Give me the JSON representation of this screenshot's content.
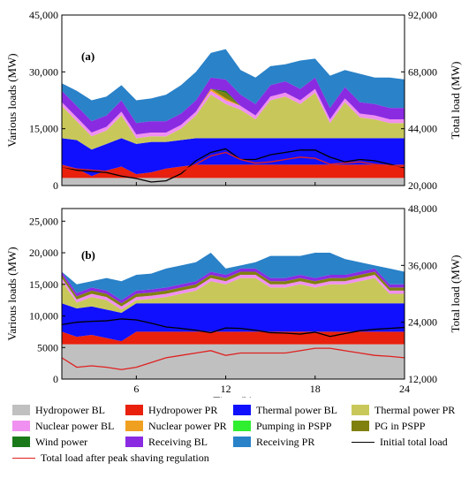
{
  "chart_data": [
    {
      "panel": "(a)",
      "type": "area",
      "stacked": true,
      "x": [
        1,
        2,
        3,
        4,
        5,
        6,
        7,
        8,
        9,
        10,
        11,
        12,
        13,
        14,
        15,
        16,
        17,
        18,
        19,
        20,
        21,
        22,
        23,
        24
      ],
      "xlim": [
        1,
        24
      ],
      "ylabel": "Various loads (MW)",
      "ylim": [
        0,
        45000
      ],
      "yticks": [
        "0",
        "15,000",
        "30,000",
        "45,000"
      ],
      "y2label": "Total load (MW)",
      "y2lim": [
        92000,
        20000
      ],
      "y2ticks": [
        "20,000",
        "44,000",
        "68,000",
        "92,000"
      ],
      "series": [
        {
          "name": "Hydropower BL",
          "values": [
            2000,
            2000,
            2000,
            2000,
            2000,
            2000,
            2000,
            2000,
            2000,
            2000,
            2000,
            2000,
            2000,
            2000,
            2000,
            2000,
            2000,
            2000,
            2000,
            2000,
            2000,
            2000,
            2000,
            2000
          ]
        },
        {
          "name": "Hydropower PR",
          "values": [
            3500,
            2500,
            500,
            2000,
            3000,
            1000,
            1500,
            2500,
            3000,
            3500,
            3500,
            3500,
            3500,
            3500,
            3500,
            3500,
            3500,
            3500,
            3500,
            3500,
            3500,
            3500,
            3500,
            3500
          ]
        },
        {
          "name": "Thermal power BL",
          "values": [
            7000,
            7500,
            7000,
            7000,
            7500,
            8000,
            8000,
            7000,
            7000,
            7000,
            7000,
            7000,
            7000,
            7000,
            7000,
            7000,
            7000,
            7000,
            7000,
            7000,
            7000,
            7000,
            7000,
            7000
          ]
        },
        {
          "name": "Thermal power PR",
          "values": [
            8500,
            5000,
            3500,
            3500,
            6000,
            1500,
            1500,
            1500,
            3000,
            6000,
            11500,
            9000,
            7500,
            5000,
            10000,
            11000,
            9000,
            12000,
            4000,
            9500,
            5500,
            5000,
            4000,
            4000
          ]
        },
        {
          "name": "Nuclear power BL",
          "values": [
            1000,
            1000,
            1000,
            1000,
            1000,
            1000,
            1000,
            1000,
            1000,
            1000,
            1000,
            1000,
            1000,
            1000,
            1000,
            1000,
            1000,
            1000,
            1000,
            1000,
            1000,
            1000,
            1000,
            1000
          ]
        },
        {
          "name": "Nuclear power PR",
          "values": [
            0,
            0,
            0,
            0,
            0,
            0,
            0,
            0,
            0,
            0,
            500,
            500,
            0,
            0,
            0,
            0,
            0,
            0,
            0,
            0,
            0,
            0,
            0,
            0
          ]
        },
        {
          "name": "Pumping in PSPP",
          "values": [
            0,
            0,
            0,
            0,
            0,
            0,
            0,
            0,
            0,
            0,
            0,
            0,
            0,
            0,
            0,
            0,
            0,
            0,
            0,
            0,
            0,
            0,
            0,
            0
          ]
        },
        {
          "name": "PG in PSPP",
          "values": [
            0,
            0,
            0,
            0,
            0,
            0,
            0,
            0,
            0,
            0,
            0,
            1500,
            0,
            0,
            0,
            0,
            0,
            0,
            0,
            0,
            0,
            0,
            0,
            0
          ]
        },
        {
          "name": "Wind power",
          "values": [
            0,
            0,
            0,
            0,
            0,
            0,
            0,
            0,
            0,
            0,
            0,
            500,
            0,
            0,
            0,
            0,
            0,
            0,
            0,
            0,
            0,
            0,
            0,
            0
          ]
        },
        {
          "name": "Receiving BL",
          "values": [
            3000,
            3000,
            3000,
            3000,
            3000,
            3000,
            3000,
            3000,
            3000,
            3000,
            3000,
            3000,
            3000,
            3000,
            3000,
            3000,
            3000,
            3000,
            3000,
            3000,
            3000,
            3000,
            3000,
            3000
          ]
        },
        {
          "name": "Receiving PR",
          "values": [
            2000,
            4000,
            5500,
            5000,
            4000,
            6000,
            6000,
            7000,
            7500,
            7500,
            6500,
            8000,
            6500,
            7000,
            5000,
            4500,
            7500,
            5000,
            8500,
            4500,
            7500,
            7000,
            8000,
            7500
          ]
        }
      ],
      "lines": [
        {
          "name": "Initial total load",
          "values": [
            28000,
            26500,
            26000,
            25500,
            24000,
            23000,
            21500,
            22000,
            25000,
            30500,
            34000,
            35500,
            31000,
            31000,
            33000,
            34000,
            35000,
            35000,
            32000,
            30000,
            31000,
            30500,
            29000,
            27500
          ]
        },
        {
          "name": "Total load after peak shaving regulation",
          "values": [
            28000,
            27000,
            26500,
            26000,
            25000,
            24000,
            24000,
            24000,
            26000,
            29000,
            32500,
            34000,
            31000,
            29500,
            30000,
            31000,
            32000,
            31500,
            29000,
            29500,
            30000,
            29000,
            28500,
            28000
          ]
        }
      ]
    },
    {
      "panel": "(b)",
      "type": "area",
      "stacked": true,
      "x": [
        1,
        2,
        3,
        4,
        5,
        6,
        7,
        8,
        9,
        10,
        11,
        12,
        13,
        14,
        15,
        16,
        17,
        18,
        19,
        20,
        21,
        22,
        23,
        24
      ],
      "xlim": [
        1,
        24
      ],
      "xlabel": "Time (h)",
      "xticks": [
        "6",
        "12",
        "18",
        "24"
      ],
      "ylabel": "Various loads (MW)",
      "ylim": [
        0,
        27000
      ],
      "yticks": [
        "0",
        "5000",
        "10,000",
        "15,000",
        "20,000",
        "25,000"
      ],
      "y2label": "Total load (MW)",
      "y2lim": [
        48000,
        12000
      ],
      "y2ticks": [
        "12,000",
        "24,000",
        "36,000",
        "48,000"
      ],
      "series": [
        {
          "name": "Hydropower BL",
          "values": [
            5500,
            5500,
            5500,
            5500,
            5500,
            5500,
            5500,
            5500,
            5500,
            5500,
            5500,
            5500,
            5500,
            5500,
            5500,
            5500,
            5500,
            5500,
            5500,
            5500,
            5500,
            5500,
            5500,
            5500
          ]
        },
        {
          "name": "Hydropower PR",
          "values": [
            2000,
            1200,
            1500,
            1000,
            500,
            2000,
            2000,
            2000,
            2000,
            2000,
            2000,
            2000,
            2000,
            2000,
            2000,
            2000,
            2000,
            2000,
            2000,
            2000,
            2000,
            2000,
            2000,
            2000
          ]
        },
        {
          "name": "Thermal power BL",
          "values": [
            4500,
            4500,
            4500,
            4500,
            4500,
            4500,
            4500,
            4500,
            4500,
            4500,
            4500,
            4500,
            4500,
            4500,
            4500,
            4500,
            4500,
            4500,
            4500,
            4500,
            4500,
            4500,
            4500,
            4500
          ]
        },
        {
          "name": "Thermal power PR",
          "values": [
            3500,
            900,
            1500,
            1500,
            500,
            500,
            700,
            1000,
            1500,
            2000,
            3500,
            3000,
            4000,
            4000,
            2500,
            2500,
            3000,
            2500,
            3000,
            3000,
            3500,
            4000,
            1500,
            1500
          ]
        },
        {
          "name": "Nuclear power BL",
          "values": [
            500,
            500,
            500,
            500,
            500,
            500,
            500,
            500,
            500,
            500,
            500,
            500,
            500,
            500,
            500,
            500,
            500,
            500,
            500,
            500,
            500,
            500,
            500,
            500
          ]
        },
        {
          "name": "Nuclear power PR",
          "values": [
            0,
            0,
            0,
            0,
            0,
            0,
            0,
            0,
            0,
            0,
            0,
            0,
            0,
            0,
            0,
            0,
            0,
            0,
            0,
            0,
            0,
            0,
            0,
            0
          ]
        },
        {
          "name": "Pumping in PSPP",
          "values": [
            0,
            0,
            0,
            0,
            0,
            0,
            0,
            0,
            0,
            0,
            0,
            0,
            0,
            0,
            0,
            0,
            0,
            0,
            0,
            0,
            0,
            0,
            0,
            0
          ]
        },
        {
          "name": "PG in PSPP",
          "values": [
            500,
            500,
            500,
            500,
            500,
            500,
            500,
            500,
            500,
            500,
            500,
            500,
            500,
            500,
            500,
            500,
            500,
            500,
            500,
            500,
            500,
            500,
            500,
            500
          ]
        },
        {
          "name": "Wind power",
          "values": [
            0,
            0,
            0,
            0,
            0,
            0,
            0,
            0,
            0,
            0,
            0,
            0,
            0,
            0,
            0,
            0,
            0,
            0,
            0,
            0,
            0,
            0,
            0,
            0
          ]
        },
        {
          "name": "Receiving BL",
          "values": [
            500,
            500,
            500,
            500,
            500,
            500,
            500,
            500,
            500,
            500,
            500,
            500,
            500,
            500,
            500,
            500,
            500,
            500,
            500,
            500,
            500,
            500,
            500,
            500
          ]
        },
        {
          "name": "Receiving PR",
          "values": [
            0,
            1400,
            1000,
            2000,
            3000,
            2500,
            2500,
            3000,
            3000,
            3000,
            3000,
            1000,
            500,
            1000,
            3500,
            3500,
            3000,
            4000,
            3500,
            2500,
            1500,
            500,
            2500,
            2000
          ]
        }
      ],
      "lines": [
        {
          "name": "Initial total load",
          "values": [
            23500,
            24000,
            24200,
            24300,
            24700,
            24500,
            23800,
            23000,
            22700,
            22300,
            21800,
            22800,
            22700,
            22300,
            21800,
            21700,
            21500,
            21900,
            21000,
            21600,
            22200,
            22500,
            22700,
            22900
          ]
        },
        {
          "name": "Total load after peak shaving regulation",
          "values": [
            16500,
            14500,
            14800,
            14500,
            14000,
            14500,
            15500,
            16500,
            17000,
            17500,
            18000,
            17000,
            17500,
            17500,
            17500,
            17500,
            18000,
            18500,
            18500,
            18000,
            17500,
            17000,
            16800,
            16500
          ]
        }
      ]
    }
  ],
  "colors": {
    "Hydropower BL": "#c0c0c0",
    "Hydropower PR": "#e8200c",
    "Thermal power BL": "#1010ff",
    "Thermal power PR": "#c8c85a",
    "Nuclear power BL": "#f090f0",
    "Nuclear power PR": "#f0a020",
    "Pumping in PSPP": "#30ee30",
    "PG in PSPP": "#808010",
    "Wind power": "#1a7a1a",
    "Receiving BL": "#8a2be2",
    "Receiving PR": "#2a82c8",
    "Initial total load": "#000000",
    "Total load after peak shaving regulation": "#e02020"
  },
  "legend": [
    {
      "label": "Hydropower BL",
      "kind": "patch"
    },
    {
      "label": "Hydropower PR",
      "kind": "patch"
    },
    {
      "label": "Thermal power BL",
      "kind": "patch"
    },
    {
      "label": "Thermal power PR",
      "kind": "patch"
    },
    {
      "label": "Nuclear power BL",
      "kind": "patch"
    },
    {
      "label": "Nuclear power PR",
      "kind": "patch"
    },
    {
      "label": "Pumping in PSPP",
      "kind": "patch"
    },
    {
      "label": "PG in PSPP",
      "kind": "patch"
    },
    {
      "label": "Wind power",
      "kind": "patch"
    },
    {
      "label": "Receiving BL",
      "kind": "patch"
    },
    {
      "label": "Receiving PR",
      "kind": "patch"
    },
    {
      "label": "Initial total load",
      "kind": "line"
    },
    {
      "label": "Total load after peak shaving regulation",
      "kind": "line"
    }
  ]
}
